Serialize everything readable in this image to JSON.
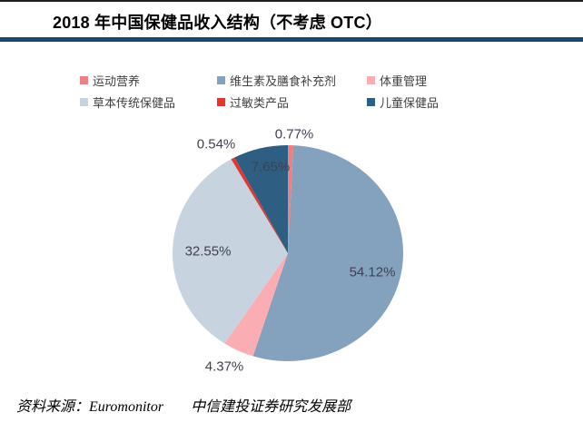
{
  "page": {
    "title": "2018 年中国保健品收入结构（不考虑 OTC）",
    "footer": {
      "source_prefix": "资料来源：",
      "source_name": "Euromonitor",
      "org": "中信建投证券研究发展部"
    }
  },
  "colors": {
    "title_rule": "#17476F",
    "top_line": "#1F1F1F",
    "label_text": "#3F4152"
  },
  "chart_data": {
    "type": "pie",
    "title": "2018 年中国保健品收入结构（不考虑 OTC）",
    "direction": "clockwise",
    "start_angle_deg": 0,
    "legend_position": "top",
    "series": [
      {
        "name": "运动营养",
        "value": 0.77,
        "label": "0.77%",
        "color": "#EA8186"
      },
      {
        "name": "维生素及膳食补充剂",
        "value": 54.12,
        "label": "54.12%",
        "color": "#84A1BD"
      },
      {
        "name": "体重管理",
        "value": 4.37,
        "label": "4.37%",
        "color": "#FAAEB4"
      },
      {
        "name": "草本传统保健品",
        "value": 32.55,
        "label": "32.55%",
        "color": "#C7D4E0"
      },
      {
        "name": "过敏类产品",
        "value": 0.54,
        "label": "0.54%",
        "color": "#E5352C"
      },
      {
        "name": "儿童保健品",
        "value": 7.65,
        "label": "7.65%",
        "color": "#2E5F82"
      }
    ]
  }
}
